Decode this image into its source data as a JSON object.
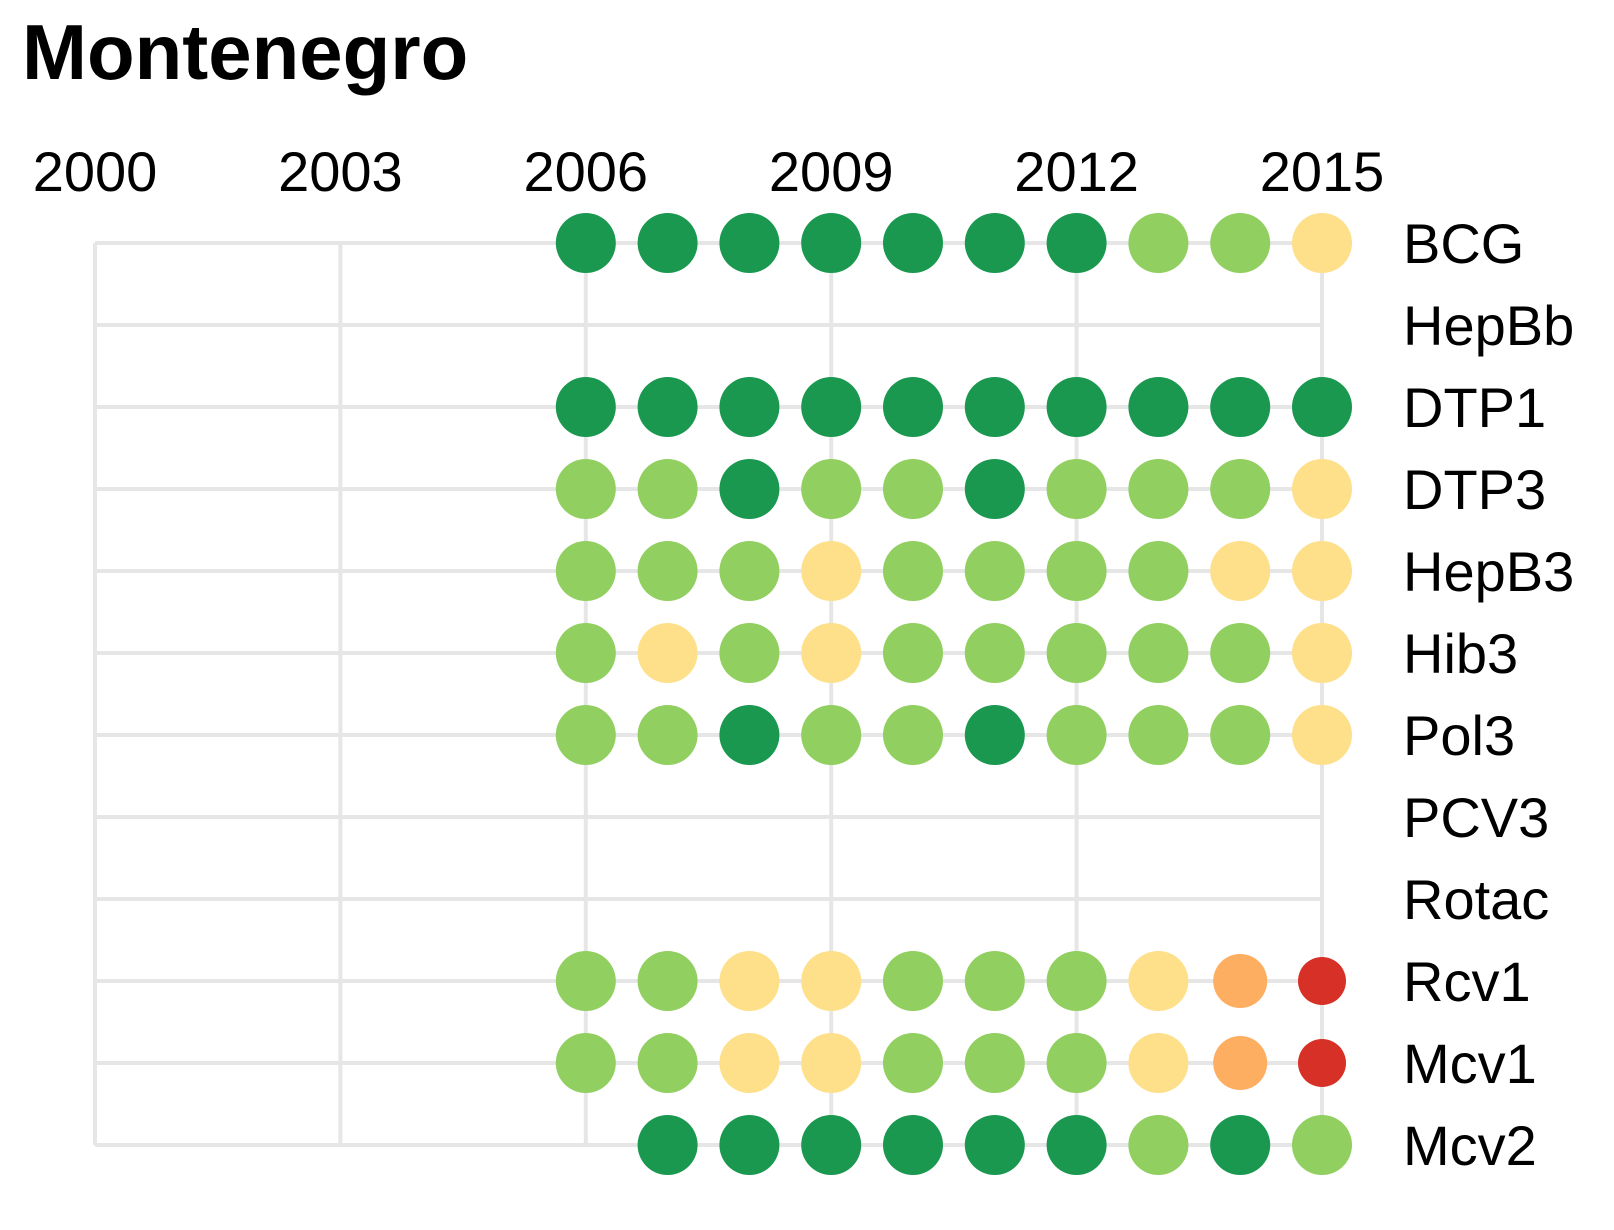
{
  "chart_data": {
    "type": "dot-matrix",
    "title": "Montenegro",
    "x_ticks": [
      2000,
      2003,
      2006,
      2009,
      2012,
      2015
    ],
    "xlim": [
      2000,
      2015
    ],
    "grid": true,
    "rows": [
      {
        "label": "BCG",
        "values": [
          null,
          null,
          null,
          null,
          null,
          null,
          "dg",
          "dg",
          "dg",
          "dg",
          "dg",
          "dg",
          "dg",
          "lg",
          "lg",
          "y"
        ]
      },
      {
        "label": "HepBb",
        "values": [
          null,
          null,
          null,
          null,
          null,
          null,
          null,
          null,
          null,
          null,
          null,
          null,
          null,
          null,
          null,
          null
        ]
      },
      {
        "label": "DTP1",
        "values": [
          null,
          null,
          null,
          null,
          null,
          null,
          "dg",
          "dg",
          "dg",
          "dg",
          "dg",
          "dg",
          "dg",
          "dg",
          "dg",
          "dg"
        ]
      },
      {
        "label": "DTP3",
        "values": [
          null,
          null,
          null,
          null,
          null,
          null,
          "lg",
          "lg",
          "dg",
          "lg",
          "lg",
          "dg",
          "lg",
          "lg",
          "lg",
          "y"
        ]
      },
      {
        "label": "HepB3",
        "values": [
          null,
          null,
          null,
          null,
          null,
          null,
          "lg",
          "lg",
          "lg",
          "y",
          "lg",
          "lg",
          "lg",
          "lg",
          "y",
          "y"
        ]
      },
      {
        "label": "Hib3",
        "values": [
          null,
          null,
          null,
          null,
          null,
          null,
          "lg",
          "y",
          "lg",
          "y",
          "lg",
          "lg",
          "lg",
          "lg",
          "lg",
          "y"
        ]
      },
      {
        "label": "Pol3",
        "values": [
          null,
          null,
          null,
          null,
          null,
          null,
          "lg",
          "lg",
          "dg",
          "lg",
          "lg",
          "dg",
          "lg",
          "lg",
          "lg",
          "y"
        ]
      },
      {
        "label": "PCV3",
        "values": [
          null,
          null,
          null,
          null,
          null,
          null,
          null,
          null,
          null,
          null,
          null,
          null,
          null,
          null,
          null,
          null
        ]
      },
      {
        "label": "Rotac",
        "values": [
          null,
          null,
          null,
          null,
          null,
          null,
          null,
          null,
          null,
          null,
          null,
          null,
          null,
          null,
          null,
          null
        ]
      },
      {
        "label": "Rcv1",
        "values": [
          null,
          null,
          null,
          null,
          null,
          null,
          "lg",
          "lg",
          "y",
          "y",
          "lg",
          "lg",
          "lg",
          "y",
          "o",
          "r"
        ]
      },
      {
        "label": "Mcv1",
        "values": [
          null,
          null,
          null,
          null,
          null,
          null,
          "lg",
          "lg",
          "y",
          "y",
          "lg",
          "lg",
          "lg",
          "y",
          "o",
          "r"
        ]
      },
      {
        "label": "Mcv2",
        "values": [
          null,
          null,
          null,
          null,
          null,
          null,
          null,
          "dg",
          "dg",
          "dg",
          "dg",
          "dg",
          "dg",
          "lg",
          "dg",
          "lg"
        ]
      }
    ],
    "color_scale": {
      "dg": "#1a9850",
      "lg": "#91cf60",
      "y": "#fee08b",
      "o": "#fdae61",
      "r": "#d73027"
    },
    "dot_size": {
      "dg": "large",
      "lg": "large",
      "y": "large",
      "o": "medium",
      "r": "small"
    }
  },
  "colors": {
    "grid": "#e6e6e6",
    "text": "#000000",
    "background": "#ffffff"
  }
}
